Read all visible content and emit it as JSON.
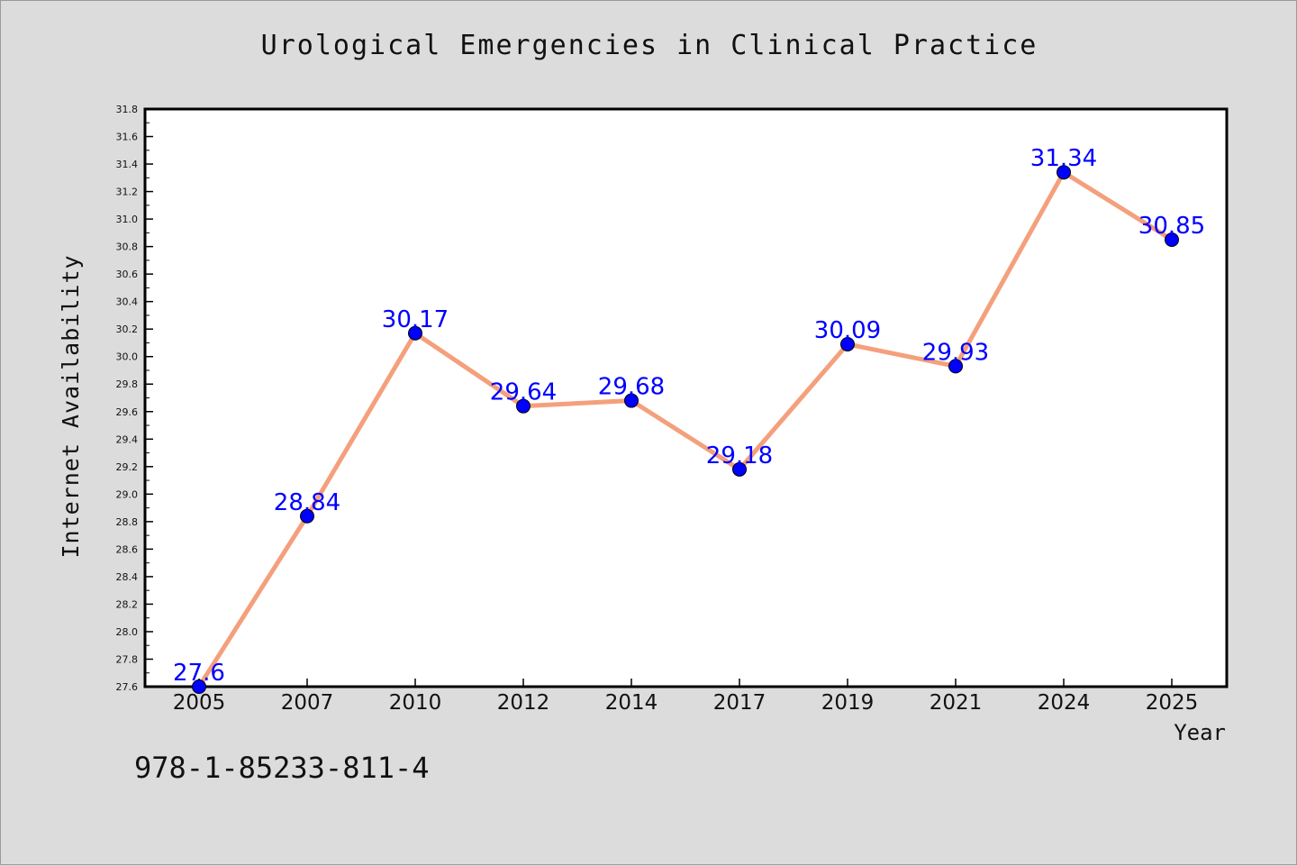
{
  "figure": {
    "title": "Urological Emergencies in Clinical Practice",
    "footer_text": "978-1-85233-811-4"
  },
  "chart_data": {
    "type": "line",
    "title": "Urological Emergencies in Clinical Practice",
    "xlabel": "Year",
    "ylabel": "Internet Availability",
    "categories": [
      "2005",
      "2007",
      "2010",
      "2012",
      "2014",
      "2017",
      "2019",
      "2021",
      "2024",
      "2025"
    ],
    "series": [
      {
        "values": [
          27.6,
          28.84,
          30.17,
          29.64,
          29.68,
          29.18,
          30.09,
          29.93,
          31.34,
          30.85
        ],
        "data_labels": [
          "27.6",
          "28.84",
          "30.17",
          "29.64",
          "29.68",
          "29.18",
          "30.09",
          "29.93",
          "31.34",
          "30.85"
        ],
        "line_color": "#f4a07c",
        "marker_color": "#0000ff"
      }
    ],
    "ylim": [
      27.6,
      31.8
    ],
    "yticks": [
      "27.6",
      "27.8",
      "28.0",
      "28.2",
      "28.4",
      "28.6",
      "28.8",
      "29.0",
      "29.2",
      "29.4",
      "29.6",
      "29.8",
      "30.0",
      "30.2",
      "30.4",
      "30.6",
      "30.8",
      "31.0",
      "31.2",
      "31.4",
      "31.6",
      "31.8"
    ],
    "grid": false,
    "legend": "none",
    "plot_background": "#ffffff",
    "label_color": "#0000ff"
  }
}
